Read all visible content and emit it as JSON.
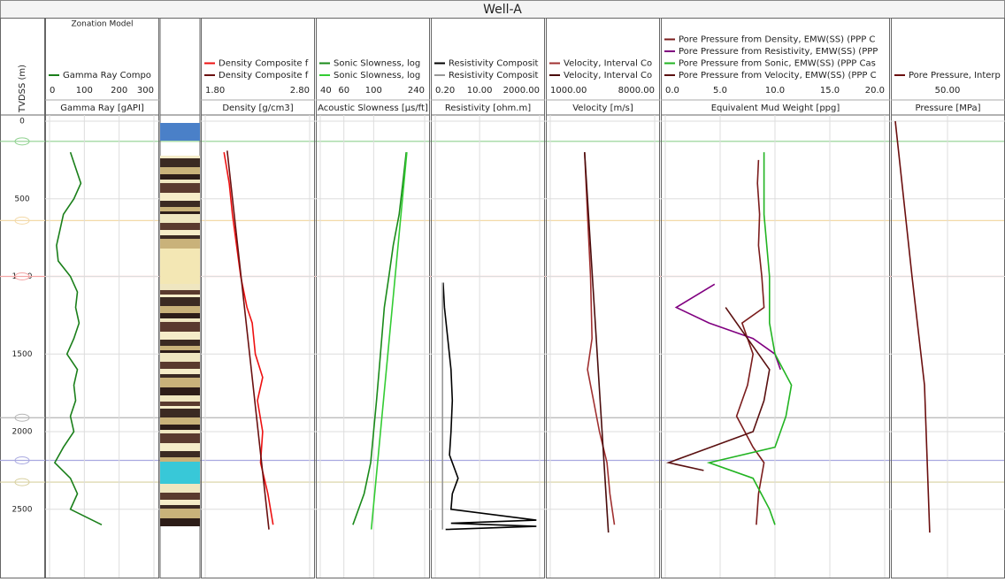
{
  "title": "Well-A",
  "depth_axis": {
    "label": "TVDSS (m)",
    "ylim": [
      -40,
      2940
    ],
    "yticks": [
      0,
      500,
      1000,
      1500,
      2000,
      2500
    ]
  },
  "zones": [
    {
      "depth": 130,
      "color": "#8fd18f"
    },
    {
      "depth": 640,
      "color": "#f3d9a8"
    },
    {
      "depth": 1000,
      "color": "#f4a6a6"
    },
    {
      "depth": 1910,
      "color": "#b5b5b5"
    },
    {
      "depth": 2185,
      "color": "#a9a9e0"
    },
    {
      "depth": 2325,
      "color": "#d8d0a0"
    }
  ],
  "chart_data": [
    {
      "type": "line",
      "header": "Zonation Model",
      "xlabel": "Gamma Ray [gAPI]",
      "xlim": [
        0,
        300
      ],
      "xticks": [
        0,
        100,
        200,
        300
      ],
      "series": [
        {
          "name": "Gamma Ray Compo",
          "color": "#1a7f1a",
          "depth": [
            200,
            300,
            400,
            500,
            600,
            700,
            800,
            900,
            1000,
            1100,
            1200,
            1300,
            1400,
            1500,
            1600,
            1700,
            1800,
            1900,
            2000,
            2100,
            2200,
            2300,
            2400,
            2500,
            2600
          ],
          "values": [
            60,
            75,
            90,
            70,
            40,
            30,
            20,
            25,
            60,
            80,
            75,
            85,
            70,
            50,
            80,
            70,
            75,
            60,
            70,
            40,
            15,
            60,
            80,
            60,
            150
          ]
        }
      ]
    },
    {
      "type": "line",
      "xlabel": "Density [g/cm3]",
      "xlim": [
        1.8,
        2.8
      ],
      "xticks": [
        {
          "value": 1.8,
          "label": "1.80"
        },
        {
          "value": 2.8,
          "label": "2.80"
        }
      ],
      "series": [
        {
          "name": "Density Composite f",
          "color": "#ee1111",
          "depth": [
            200,
            400,
            600,
            800,
            1000,
            1200,
            1300,
            1500,
            1650,
            1800,
            2000,
            2200,
            2400,
            2600
          ],
          "values": [
            1.98,
            2.03,
            2.06,
            2.1,
            2.14,
            2.2,
            2.25,
            2.28,
            2.35,
            2.3,
            2.35,
            2.33,
            2.4,
            2.45
          ]
        },
        {
          "name": "Density Composite f",
          "color": "#6b1010",
          "depth": [
            190,
            2630
          ],
          "values": [
            2.01,
            2.41
          ]
        }
      ]
    },
    {
      "type": "line",
      "log": true,
      "xlabel": "Acoustic Slowness [µs/ft]",
      "xlim": [
        40,
        240
      ],
      "xticks": [
        40,
        60,
        100,
        240
      ],
      "series": [
        {
          "name": "Sonic Slowness, log",
          "color": "#1a8a1a",
          "depth": [
            200,
            400,
            600,
            800,
            1000,
            1200,
            1400,
            1600,
            1800,
            2000,
            2200,
            2400,
            2600
          ],
          "values": [
            175,
            165,
            155,
            140,
            130,
            120,
            115,
            110,
            105,
            100,
            95,
            85,
            70
          ]
        },
        {
          "name": "Sonic Slowness, log",
          "color": "#33cc33",
          "depth": [
            200,
            2630
          ],
          "values": [
            177,
            96
          ]
        }
      ]
    },
    {
      "type": "line",
      "log": true,
      "xlabel": "Resistivity [ohm.m]",
      "xlim": [
        0.2,
        2000
      ],
      "xticks": [
        {
          "value": 0.2,
          "label": "0.20"
        },
        {
          "value": 10,
          "label": "10.00"
        },
        {
          "value": 2000,
          "label": "2000.00"
        }
      ],
      "series": [
        {
          "name": "Resistivity Composit",
          "color": "#000000",
          "depth": [
            1040,
            1200,
            1400,
            1600,
            1800,
            2000,
            2150,
            2300,
            2400,
            2500,
            2570,
            2590,
            2610,
            2630
          ],
          "values": [
            0.4,
            0.45,
            0.6,
            0.8,
            0.9,
            0.8,
            0.7,
            1.5,
            0.9,
            0.8,
            1500,
            0.8,
            1500,
            0.5
          ]
        },
        {
          "name": "Resistivity Composit",
          "color": "#999999",
          "depth": [
            1040,
            2630
          ],
          "values": [
            0.38,
            0.38
          ]
        }
      ]
    },
    {
      "type": "line",
      "xlabel": "Velocity [m/s]",
      "xlim": [
        1000,
        8000
      ],
      "xticks": [
        {
          "value": 1000,
          "label": "1000.00"
        },
        {
          "value": 8000,
          "label": "8000.00"
        }
      ],
      "series": [
        {
          "name": "Velocity, Interval Co",
          "color": "#a03030",
          "depth": [
            200,
            600,
            1000,
            1400,
            1600,
            1800,
            2000,
            2200,
            2400,
            2600
          ],
          "values": [
            3300,
            3500,
            3700,
            3800,
            3500,
            3900,
            4300,
            4800,
            5000,
            5300
          ]
        },
        {
          "name": "Velocity, Interval Co",
          "color": "#4a0c0c",
          "depth": [
            200,
            2650
          ],
          "values": [
            3300,
            4900
          ]
        }
      ]
    },
    {
      "type": "line",
      "xlabel": "Equivalent Mud Weight [ppg]",
      "xlim": [
        0,
        20
      ],
      "xticks": [
        {
          "value": 0,
          "label": "0.0"
        },
        {
          "value": 5,
          "label": "5.0"
        },
        {
          "value": 10,
          "label": "10.0"
        },
        {
          "value": 15,
          "label": "15.0"
        },
        {
          "value": 20,
          "label": "20.0"
        }
      ],
      "series": [
        {
          "name": "Pore Pressure from Density, EMW(SS) (PPP C",
          "color": "#7b1c1c",
          "depth": [
            250,
            400,
            600,
            800,
            1000,
            1200,
            1300,
            1500,
            1700,
            1900,
            2100,
            2200,
            2400,
            2600
          ],
          "values": [
            8.5,
            8.4,
            8.6,
            8.5,
            8.8,
            9.0,
            7.0,
            8.0,
            7.5,
            6.5,
            8.0,
            9.0,
            8.5,
            8.3
          ]
        },
        {
          "name": "Pore Pressure from Resistivity, EMW(SS) (PPP",
          "color": "#800080",
          "depth": [
            1050,
            1200,
            1300,
            1400,
            1500,
            1600
          ],
          "values": [
            4.5,
            1.0,
            4.0,
            8.0,
            10.0,
            10.5
          ]
        },
        {
          "name": "Pore Pressure from Sonic, EMW(SS) (PPP Cas",
          "color": "#22b422",
          "depth": [
            200,
            600,
            1000,
            1300,
            1500,
            1700,
            1900,
            2100,
            2200,
            2300,
            2500,
            2600
          ],
          "values": [
            9.0,
            9.0,
            9.5,
            9.5,
            10.0,
            11.5,
            11.0,
            10.0,
            4.0,
            8.0,
            9.5,
            10.0
          ]
        },
        {
          "name": "Pore Pressure from Velocity, EMW(SS) (PPP C",
          "color": "#5a1010",
          "depth": [
            1200,
            1400,
            1600,
            1800,
            2000,
            2200,
            2250
          ],
          "values": [
            5.5,
            7.5,
            9.5,
            9.0,
            8.0,
            0.3,
            3.5
          ]
        }
      ]
    },
    {
      "type": "line",
      "xlabel": "Pressure [MPa]",
      "xlim": [
        0,
        100
      ],
      "xticks": [
        {
          "value": 50,
          "label": "50.00"
        }
      ],
      "series": [
        {
          "name": "Pore Pressure, Interp",
          "color": "#6b0f0f",
          "depth": [
            0,
            1000,
            1700,
            2650
          ],
          "values": [
            0,
            16,
            28,
            33
          ]
        }
      ]
    }
  ]
}
